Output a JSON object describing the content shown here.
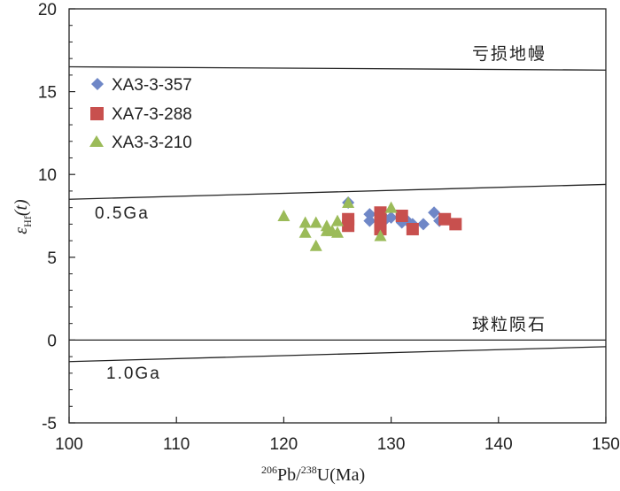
{
  "chart_data": {
    "type": "scatter",
    "title": "",
    "xlabel": {
      "sup1": "206",
      "part1": "Pb/",
      "sup2": "238",
      "part2": "U(Ma)"
    },
    "ylabel": {
      "main": "ε",
      "sub": "Hf",
      "tail": "(t)"
    },
    "xlim": [
      100,
      150
    ],
    "ylim": [
      -5,
      20
    ],
    "xticks": [
      100,
      110,
      120,
      130,
      140,
      150
    ],
    "yticks": [
      -5,
      0,
      5,
      10,
      15,
      20
    ],
    "grid": false,
    "legend_position": "top-left",
    "series": [
      {
        "name": "XA3-3-357",
        "marker": "diamond",
        "color": "#6F87C7",
        "x": [
          126,
          128,
          128,
          129,
          129.5,
          130,
          131,
          131.5,
          132,
          133,
          134,
          134.5
        ],
        "y": [
          8.3,
          7.2,
          7.6,
          7.5,
          7.3,
          7.4,
          7.1,
          7.2,
          7.0,
          7.0,
          7.7,
          7.2
        ]
      },
      {
        "name": "XA7-3-288",
        "marker": "square",
        "color": "#C8504E",
        "x": [
          126,
          126,
          129,
          129,
          129,
          131,
          132,
          135,
          136
        ],
        "y": [
          6.9,
          7.3,
          7.7,
          7.1,
          6.7,
          7.5,
          6.7,
          7.3,
          7.0
        ]
      },
      {
        "name": "XA3-3-210",
        "marker": "triangle",
        "color": "#9BBB59",
        "x": [
          120,
          122,
          122,
          123,
          123,
          124,
          124,
          124.5,
          125,
          125,
          126,
          129,
          130
        ],
        "y": [
          7.5,
          7.1,
          6.5,
          7.1,
          5.7,
          6.6,
          6.9,
          6.6,
          7.2,
          6.5,
          8.3,
          6.3,
          8.0
        ]
      }
    ],
    "reference_lines": [
      {
        "name": "depleted-mantle",
        "label": "亏损地幔",
        "x": [
          100,
          150
        ],
        "y": [
          16.5,
          16.3
        ]
      },
      {
        "name": "0.5ga",
        "label": "0.5Ga",
        "x": [
          100,
          150
        ],
        "y": [
          8.5,
          9.4
        ]
      },
      {
        "name": "chondrite",
        "label": "球粒陨石",
        "x": [
          100,
          150
        ],
        "y": [
          0,
          0
        ]
      },
      {
        "name": "1.0ga",
        "label": "1.0Ga",
        "x": [
          100,
          150
        ],
        "y": [
          -1.3,
          -0.4
        ]
      }
    ]
  }
}
